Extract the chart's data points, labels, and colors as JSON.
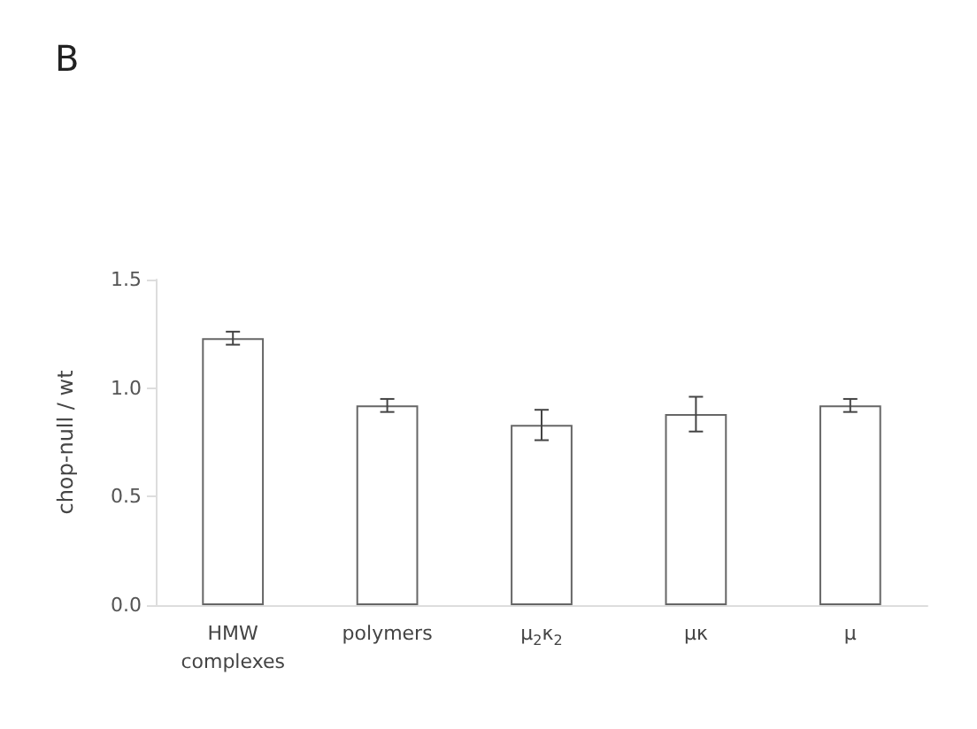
{
  "chart_data": {
    "type": "bar",
    "title": "B",
    "ylabel": "chop-null / wt",
    "categories": [
      "HMW\ncomplexes",
      "polymers",
      "μ$_{2}$κ$_{2}$",
      "μκ",
      "μ"
    ],
    "values": [
      1.23,
      0.92,
      0.83,
      0.88,
      0.92
    ],
    "errors": [
      0.03,
      0.03,
      0.07,
      0.08,
      0.03
    ],
    "color": "#ffffff",
    "ylim": [
      0,
      1.5
    ],
    "yticks": [
      {
        "value": 0,
        "label": "0.0"
      },
      0.5,
      {
        "value": 1,
        "label": "1.0"
      },
      1.5
    ],
    "grid": false
  }
}
